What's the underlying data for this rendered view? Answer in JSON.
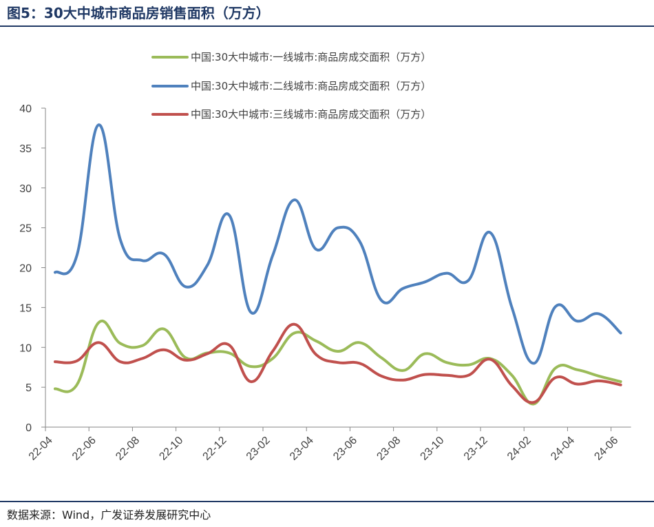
{
  "figure": {
    "title": "图5：30大中城市商品房销售面积（万方）",
    "source": "数据来源：Wind，广发证券发展研究中心"
  },
  "chart_data": {
    "type": "line",
    "title": "图5：30大中城市商品房销售面积（万方）",
    "xlabel": "",
    "ylabel": "",
    "ylim": [
      0,
      40
    ],
    "yticks": [
      0,
      5,
      10,
      15,
      20,
      25,
      30,
      35,
      40
    ],
    "x_tick_labels": [
      "22-04",
      "22-06",
      "22-08",
      "22-10",
      "22-12",
      "23-02",
      "23-04",
      "23-06",
      "23-08",
      "23-10",
      "23-12",
      "24-02",
      "24-04",
      "24-06"
    ],
    "grid": false,
    "legend_position": "top",
    "categories": [
      "22-04",
      "22-05",
      "22-06",
      "22-07",
      "22-08",
      "22-09",
      "22-10",
      "22-11",
      "22-12",
      "23-01",
      "23-02",
      "23-03",
      "23-04",
      "23-05",
      "23-06",
      "23-07",
      "23-08",
      "23-09",
      "23-10",
      "23-11",
      "23-12",
      "24-01",
      "24-02",
      "24-03",
      "24-04",
      "24-05",
      "24-06"
    ],
    "series": [
      {
        "name": "中国:30大中城市:一线城市:商品房成交面积（万方）",
        "color": "#9bbb59",
        "values": [
          4.8,
          5.3,
          13.1,
          10.5,
          10.2,
          12.3,
          8.7,
          9.3,
          9.3,
          7.6,
          8.6,
          11.8,
          10.8,
          9.5,
          10.6,
          8.7,
          7.1,
          9.2,
          8.1,
          7.8,
          8.6,
          6.5,
          2.9,
          7.4,
          7.2,
          6.4,
          5.7
        ]
      },
      {
        "name": "中国:30大中城市:二线城市:商品房成交面积（万方）",
        "color": "#4f81bd",
        "values": [
          19.4,
          21.5,
          37.9,
          23.5,
          20.9,
          21.7,
          17.6,
          20.3,
          26.6,
          14.4,
          21.5,
          28.5,
          22.3,
          25.0,
          23.3,
          15.9,
          17.4,
          18.2,
          19.3,
          18.4,
          24.4,
          15.0,
          8.0,
          15.1,
          13.3,
          14.2,
          11.8
        ]
      },
      {
        "name": "中国:30大中城市:三线城市:商品房成交面积（万方）",
        "color": "#c0504d",
        "values": [
          8.2,
          8.3,
          10.6,
          8.2,
          8.6,
          9.7,
          8.4,
          9.2,
          10.3,
          5.7,
          9.5,
          12.9,
          9.1,
          8.1,
          8.0,
          6.4,
          5.9,
          6.6,
          6.5,
          6.5,
          8.5,
          5.2,
          3.1,
          6.2,
          5.4,
          5.8,
          5.3
        ]
      }
    ]
  }
}
